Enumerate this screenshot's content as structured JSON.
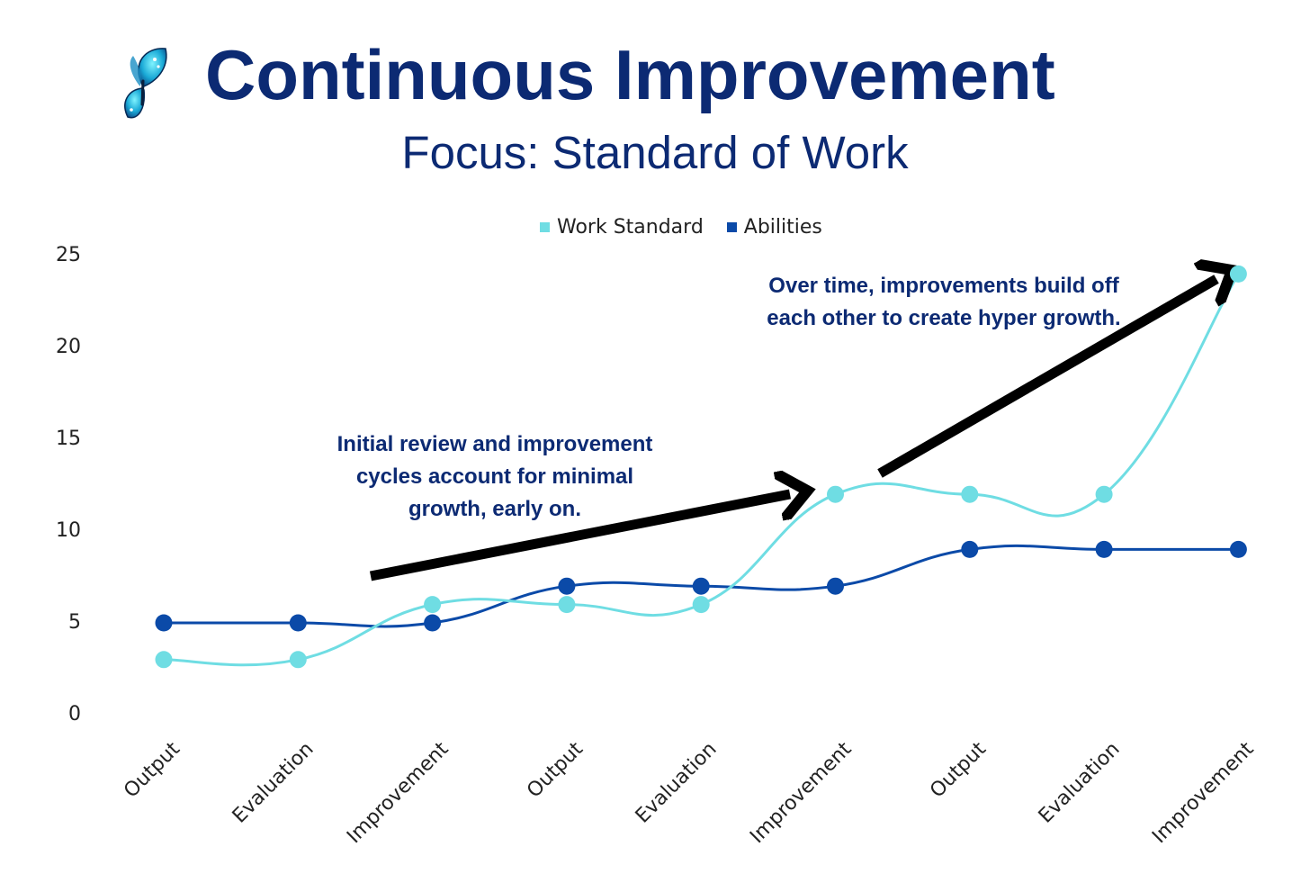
{
  "header": {
    "title": "Continuous Improvement",
    "subtitle": "Focus: Standard of Work",
    "logo_icon": "butterfly-icon"
  },
  "colors": {
    "title": "#0c2a73",
    "work_standard": "#6fdde3",
    "abilities": "#0b4aa8",
    "arrow": "#000000"
  },
  "annotations": [
    "Initial review and improvement cycles account for minimal growth, early on.",
    "Over time, improvements build off each other to create hyper growth."
  ],
  "chart_data": {
    "type": "line",
    "smooth": true,
    "categories": [
      "Output",
      "Evaluation",
      "Improvement",
      "Output",
      "Evaluation",
      "Improvement",
      "Output",
      "Evaluation",
      "Improvement"
    ],
    "series": [
      {
        "name": "Work Standard",
        "color": "#6fdde3",
        "values": [
          3,
          3,
          6,
          6,
          6,
          12,
          12,
          12,
          24
        ]
      },
      {
        "name": "Abilities",
        "color": "#0b4aa8",
        "values": [
          5,
          5,
          5,
          7,
          7,
          7,
          9,
          9,
          9
        ]
      }
    ],
    "yticks": [
      0,
      5,
      10,
      15,
      20,
      25
    ],
    "ylim": [
      0,
      25
    ],
    "grid": false,
    "legend_position": "top"
  }
}
